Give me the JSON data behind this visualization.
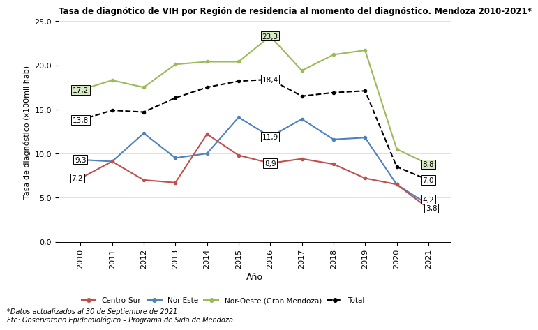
{
  "title": "Tasa de diagnótico de VIH por Región de residencia al momento del diagnóstico. Mendoza 2010-2021*",
  "xlabel": "Año",
  "ylabel": "Tasa de diagnóstico (x100mil hab)",
  "years": [
    2010,
    2011,
    2012,
    2013,
    2014,
    2015,
    2016,
    2017,
    2018,
    2019,
    2020,
    2021
  ],
  "centro_sur": [
    7.2,
    9.1,
    7.0,
    6.7,
    12.2,
    9.8,
    8.9,
    9.4,
    8.8,
    7.2,
    6.5,
    3.8
  ],
  "nor_este": [
    9.3,
    9.1,
    12.3,
    9.5,
    10.0,
    14.1,
    11.9,
    13.9,
    11.6,
    11.8,
    6.5,
    4.2
  ],
  "nor_oeste": [
    17.2,
    18.3,
    17.5,
    20.1,
    20.4,
    20.4,
    23.3,
    19.4,
    21.2,
    21.7,
    10.5,
    8.8
  ],
  "total": [
    13.8,
    14.9,
    14.7,
    16.3,
    17.5,
    18.2,
    18.4,
    16.5,
    16.9,
    17.1,
    8.5,
    7.0
  ],
  "color_centro_sur": "#C0504D",
  "color_nor_este": "#4F81BD",
  "color_nor_oeste": "#9BBB59",
  "color_total": "#000000",
  "label_centro_sur": "Centro-Sur",
  "label_nor_este": "Nor-Este",
  "label_nor_oeste": "Nor-Oeste (Gran Mendoza)",
  "label_total": "Total",
  "ylim": [
    0,
    25
  ],
  "yticks": [
    0.0,
    5.0,
    10.0,
    15.0,
    20.0,
    25.0
  ],
  "footnote1": "*Datos actualizados al 30 de Septiembre de 2021",
  "footnote2": "Fte: Observatorio Epidemiológico – Programa de Sida de Mendoza",
  "annotations_2010": {
    "centro_sur": "7,2",
    "nor_este": "9,3",
    "nor_oeste": "17,2",
    "total": "13,8"
  },
  "annotations_2016": {
    "centro_sur": "8,9",
    "nor_este": "11,9",
    "nor_oeste": "23,3",
    "total": "18,4"
  },
  "annotations_2021": {
    "centro_sur": "3,8",
    "nor_este": "4,2",
    "nor_oeste": "8,8",
    "total": "7,0"
  },
  "background_color": "#FFFFFF"
}
